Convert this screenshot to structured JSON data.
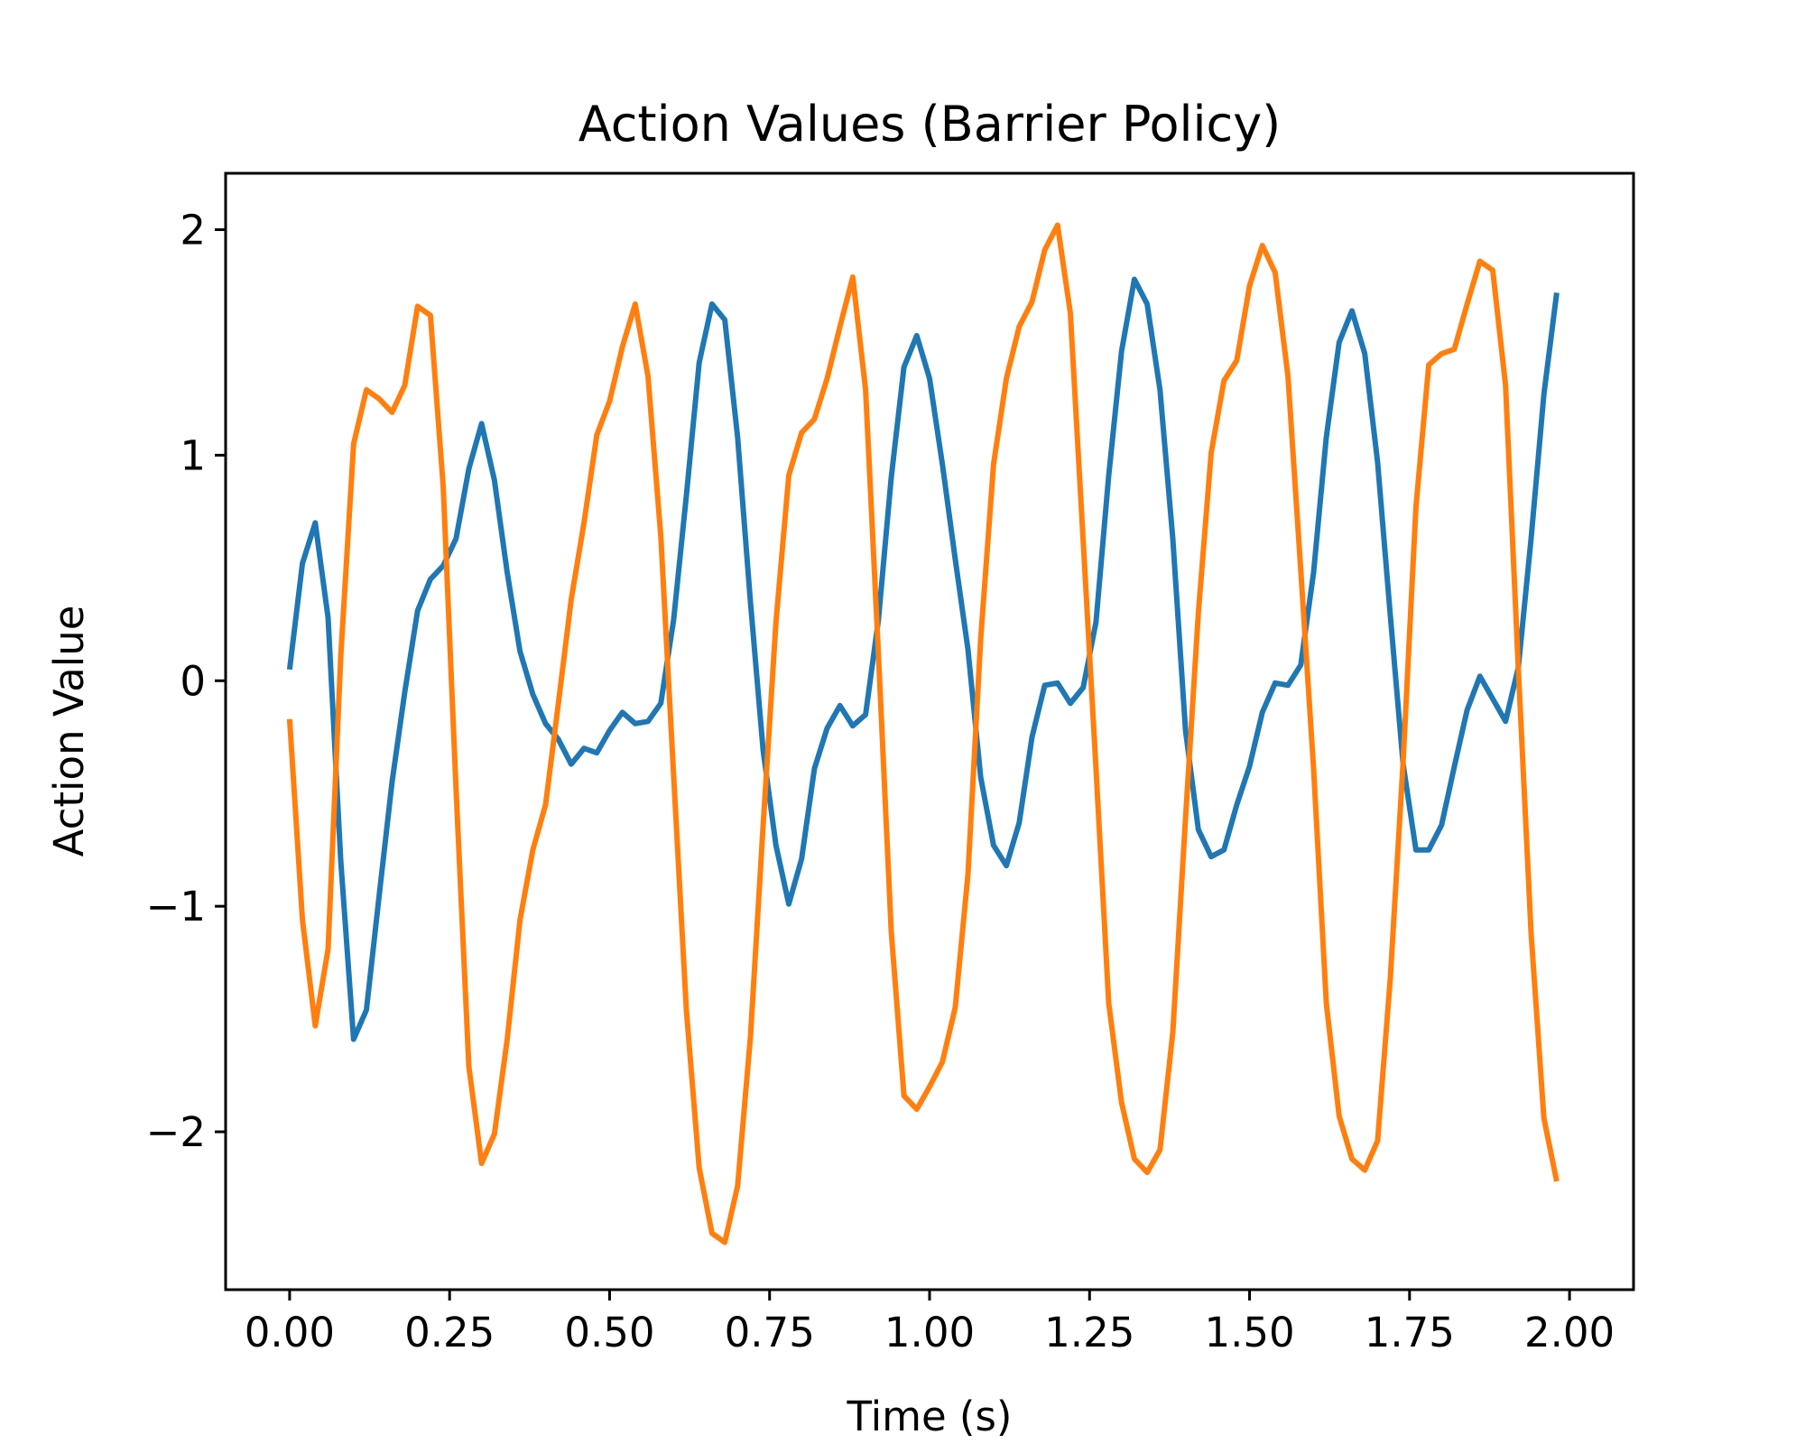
{
  "chart_data": {
    "type": "line",
    "title": "Action Values (Barrier Policy)",
    "xlabel": "Time (s)",
    "ylabel": "Action Value",
    "xlim": [
      -0.1,
      2.1
    ],
    "ylim": [
      -2.7,
      2.25
    ],
    "x_ticks": [
      0,
      0.25,
      0.5,
      0.75,
      1.0,
      1.25,
      1.5,
      1.75,
      2.0
    ],
    "x_tick_labels": [
      "0.00",
      "0.25",
      "0.50",
      "0.75",
      "1.00",
      "1.25",
      "1.50",
      "1.75",
      "2.00"
    ],
    "y_ticks": [
      -2,
      -1,
      0,
      1,
      2
    ],
    "y_tick_labels": [
      "−2",
      "−1",
      "0",
      "1",
      "2"
    ],
    "grid": false,
    "series": [
      {
        "color": "#1f77b4",
        "points": [
          [
            0.0,
            0.05
          ],
          [
            0.02,
            0.52
          ],
          [
            0.04,
            0.7
          ],
          [
            0.06,
            0.28
          ],
          [
            0.08,
            -0.8
          ],
          [
            0.1,
            -1.59
          ],
          [
            0.12,
            -1.46
          ],
          [
            0.14,
            -0.95
          ],
          [
            0.16,
            -0.45
          ],
          [
            0.18,
            -0.05
          ],
          [
            0.2,
            0.31
          ],
          [
            0.22,
            0.45
          ],
          [
            0.24,
            0.51
          ],
          [
            0.26,
            0.63
          ],
          [
            0.28,
            0.94
          ],
          [
            0.3,
            1.14
          ],
          [
            0.32,
            0.89
          ],
          [
            0.34,
            0.48
          ],
          [
            0.36,
            0.13
          ],
          [
            0.38,
            -0.06
          ],
          [
            0.4,
            -0.19
          ],
          [
            0.42,
            -0.26
          ],
          [
            0.44,
            -0.37
          ],
          [
            0.46,
            -0.3
          ],
          [
            0.48,
            -0.32
          ],
          [
            0.5,
            -0.22
          ],
          [
            0.52,
            -0.14
          ],
          [
            0.54,
            -0.19
          ],
          [
            0.56,
            -0.18
          ],
          [
            0.58,
            -0.1
          ],
          [
            0.6,
            0.27
          ],
          [
            0.62,
            0.82
          ],
          [
            0.64,
            1.41
          ],
          [
            0.66,
            1.67
          ],
          [
            0.68,
            1.6
          ],
          [
            0.7,
            1.08
          ],
          [
            0.72,
            0.35
          ],
          [
            0.74,
            -0.31
          ],
          [
            0.76,
            -0.73
          ],
          [
            0.78,
            -0.99
          ],
          [
            0.8,
            -0.79
          ],
          [
            0.82,
            -0.39
          ],
          [
            0.84,
            -0.21
          ],
          [
            0.86,
            -0.11
          ],
          [
            0.88,
            -0.2
          ],
          [
            0.9,
            -0.15
          ],
          [
            0.92,
            0.27
          ],
          [
            0.94,
            0.9
          ],
          [
            0.96,
            1.39
          ],
          [
            0.98,
            1.53
          ],
          [
            1.0,
            1.34
          ],
          [
            1.02,
            0.96
          ],
          [
            1.04,
            0.54
          ],
          [
            1.06,
            0.14
          ],
          [
            1.08,
            -0.43
          ],
          [
            1.1,
            -0.73
          ],
          [
            1.12,
            -0.82
          ],
          [
            1.14,
            -0.63
          ],
          [
            1.16,
            -0.25
          ],
          [
            1.18,
            -0.02
          ],
          [
            1.2,
            -0.01
          ],
          [
            1.22,
            -0.1
          ],
          [
            1.24,
            -0.03
          ],
          [
            1.26,
            0.26
          ],
          [
            1.28,
            0.91
          ],
          [
            1.3,
            1.46
          ],
          [
            1.32,
            1.78
          ],
          [
            1.34,
            1.67
          ],
          [
            1.36,
            1.29
          ],
          [
            1.38,
            0.63
          ],
          [
            1.4,
            -0.22
          ],
          [
            1.42,
            -0.66
          ],
          [
            1.44,
            -0.78
          ],
          [
            1.46,
            -0.75
          ],
          [
            1.48,
            -0.55
          ],
          [
            1.5,
            -0.38
          ],
          [
            1.52,
            -0.14
          ],
          [
            1.54,
            -0.01
          ],
          [
            1.56,
            -0.02
          ],
          [
            1.58,
            0.07
          ],
          [
            1.6,
            0.48
          ],
          [
            1.62,
            1.08
          ],
          [
            1.64,
            1.5
          ],
          [
            1.66,
            1.64
          ],
          [
            1.68,
            1.45
          ],
          [
            1.7,
            0.97
          ],
          [
            1.72,
            0.29
          ],
          [
            1.74,
            -0.37
          ],
          [
            1.76,
            -0.75
          ],
          [
            1.78,
            -0.75
          ],
          [
            1.8,
            -0.64
          ],
          [
            1.82,
            -0.38
          ],
          [
            1.84,
            -0.13
          ],
          [
            1.86,
            0.02
          ],
          [
            1.88,
            -0.08
          ],
          [
            1.9,
            -0.18
          ],
          [
            1.92,
            0.06
          ],
          [
            1.94,
            0.63
          ],
          [
            1.96,
            1.27
          ],
          [
            1.98,
            1.72
          ]
        ]
      },
      {
        "color": "#ff7f0e",
        "points": [
          [
            0.0,
            -0.17
          ],
          [
            0.02,
            -1.06
          ],
          [
            0.04,
            -1.53
          ],
          [
            0.06,
            -1.19
          ],
          [
            0.08,
            0.11
          ],
          [
            0.1,
            1.05
          ],
          [
            0.12,
            1.29
          ],
          [
            0.14,
            1.25
          ],
          [
            0.16,
            1.19
          ],
          [
            0.18,
            1.31
          ],
          [
            0.2,
            1.66
          ],
          [
            0.22,
            1.62
          ],
          [
            0.24,
            0.86
          ],
          [
            0.26,
            -0.48
          ],
          [
            0.28,
            -1.71
          ],
          [
            0.3,
            -2.14
          ],
          [
            0.32,
            -2.01
          ],
          [
            0.34,
            -1.59
          ],
          [
            0.36,
            -1.06
          ],
          [
            0.38,
            -0.75
          ],
          [
            0.4,
            -0.55
          ],
          [
            0.42,
            -0.1
          ],
          [
            0.44,
            0.36
          ],
          [
            0.46,
            0.7
          ],
          [
            0.48,
            1.09
          ],
          [
            0.5,
            1.24
          ],
          [
            0.52,
            1.48
          ],
          [
            0.54,
            1.67
          ],
          [
            0.56,
            1.35
          ],
          [
            0.58,
            0.64
          ],
          [
            0.6,
            -0.42
          ],
          [
            0.62,
            -1.46
          ],
          [
            0.64,
            -2.16
          ],
          [
            0.66,
            -2.45
          ],
          [
            0.68,
            -2.49
          ],
          [
            0.7,
            -2.24
          ],
          [
            0.72,
            -1.58
          ],
          [
            0.74,
            -0.64
          ],
          [
            0.76,
            0.26
          ],
          [
            0.78,
            0.91
          ],
          [
            0.8,
            1.1
          ],
          [
            0.82,
            1.16
          ],
          [
            0.84,
            1.34
          ],
          [
            0.86,
            1.57
          ],
          [
            0.88,
            1.79
          ],
          [
            0.9,
            1.29
          ],
          [
            0.92,
            0.12
          ],
          [
            0.94,
            -1.11
          ],
          [
            0.96,
            -1.84
          ],
          [
            0.98,
            -1.9
          ],
          [
            1.0,
            -1.8
          ],
          [
            1.02,
            -1.69
          ],
          [
            1.04,
            -1.45
          ],
          [
            1.06,
            -0.86
          ],
          [
            1.08,
            0.19
          ],
          [
            1.1,
            0.96
          ],
          [
            1.12,
            1.34
          ],
          [
            1.14,
            1.57
          ],
          [
            1.16,
            1.68
          ],
          [
            1.18,
            1.91
          ],
          [
            1.2,
            2.02
          ],
          [
            1.22,
            1.63
          ],
          [
            1.24,
            0.62
          ],
          [
            1.26,
            -0.39
          ],
          [
            1.28,
            -1.43
          ],
          [
            1.3,
            -1.87
          ],
          [
            1.32,
            -2.12
          ],
          [
            1.34,
            -2.18
          ],
          [
            1.36,
            -2.08
          ],
          [
            1.38,
            -1.56
          ],
          [
            1.4,
            -0.61
          ],
          [
            1.42,
            0.3
          ],
          [
            1.44,
            1.01
          ],
          [
            1.46,
            1.33
          ],
          [
            1.48,
            1.42
          ],
          [
            1.5,
            1.75
          ],
          [
            1.52,
            1.93
          ],
          [
            1.54,
            1.81
          ],
          [
            1.56,
            1.35
          ],
          [
            1.58,
            0.49
          ],
          [
            1.6,
            -0.39
          ],
          [
            1.62,
            -1.43
          ],
          [
            1.64,
            -1.93
          ],
          [
            1.66,
            -2.12
          ],
          [
            1.68,
            -2.17
          ],
          [
            1.7,
            -2.04
          ],
          [
            1.72,
            -1.32
          ],
          [
            1.74,
            -0.36
          ],
          [
            1.76,
            0.77
          ],
          [
            1.78,
            1.4
          ],
          [
            1.8,
            1.45
          ],
          [
            1.82,
            1.47
          ],
          [
            1.84,
            1.67
          ],
          [
            1.86,
            1.86
          ],
          [
            1.88,
            1.82
          ],
          [
            1.9,
            1.31
          ],
          [
            1.92,
            0.05
          ],
          [
            1.94,
            -1.12
          ],
          [
            1.96,
            -1.94
          ],
          [
            1.98,
            -2.22
          ]
        ]
      }
    ]
  }
}
